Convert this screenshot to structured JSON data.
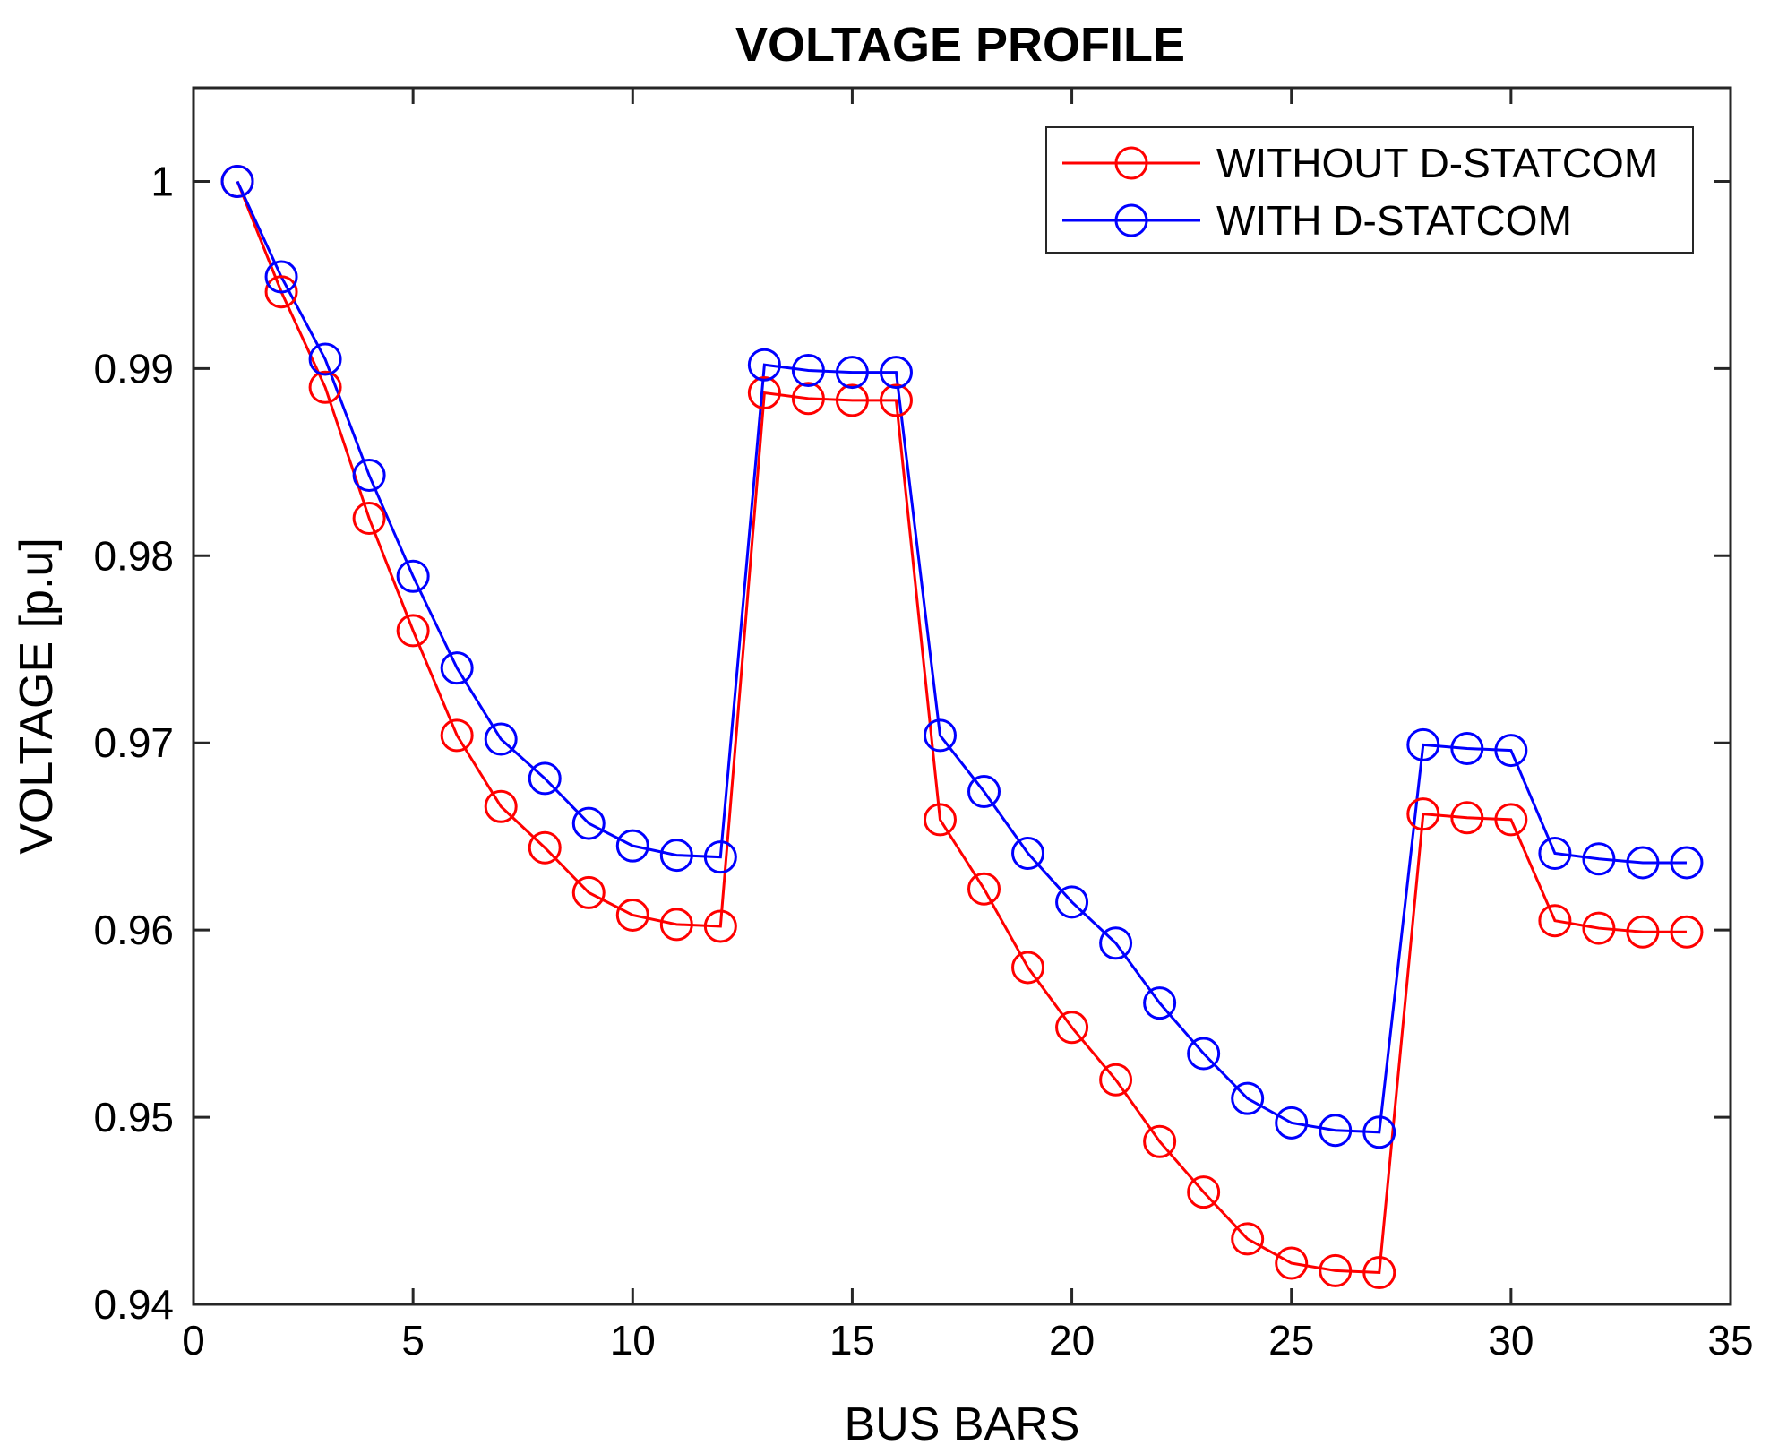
{
  "chart_data": {
    "type": "line",
    "title": "VOLTAGE PROFILE",
    "xlabel": "BUS BARS",
    "ylabel": "VOLTAGE [p.u]",
    "xlim": [
      0,
      35
    ],
    "ylim": [
      0.94,
      1.005
    ],
    "xticks": [
      0,
      5,
      10,
      15,
      20,
      25,
      30,
      35
    ],
    "xtick_labels": [
      "0",
      "5",
      "10",
      "15",
      "20",
      "25",
      "30",
      "35"
    ],
    "yticks": [
      0.94,
      0.95,
      0.96,
      0.97,
      0.98,
      0.99,
      1.0
    ],
    "ytick_labels": [
      "0.94",
      "0.95",
      "0.96",
      "0.97",
      "0.98",
      "0.99",
      "1"
    ],
    "grid": false,
    "legend_position": "top-right",
    "x": [
      1,
      2,
      3,
      4,
      5,
      6,
      7,
      8,
      9,
      10,
      11,
      12,
      13,
      14,
      15,
      16,
      17,
      18,
      19,
      20,
      21,
      22,
      23,
      24,
      25,
      26,
      27,
      28,
      29,
      30,
      31,
      32,
      33,
      34
    ],
    "series": [
      {
        "name": "WITHOUT D-STATCOM",
        "color": "#ff0000",
        "marker": "circle",
        "values": [
          1.0,
          0.9941,
          0.989,
          0.982,
          0.976,
          0.9704,
          0.9666,
          0.9644,
          0.962,
          0.9608,
          0.9603,
          0.9602,
          0.9887,
          0.9884,
          0.9883,
          0.9883,
          0.9659,
          0.9622,
          0.958,
          0.9548,
          0.952,
          0.9487,
          0.946,
          0.9435,
          0.9422,
          0.9418,
          0.9417,
          0.9662,
          0.966,
          0.9659,
          0.9605,
          0.9601,
          0.9599,
          0.9599
        ]
      },
      {
        "name": "WITH D-STATCOM",
        "color": "#0000ff",
        "marker": "circle",
        "values": [
          1.0,
          0.9949,
          0.9905,
          0.9843,
          0.9789,
          0.974,
          0.9702,
          0.9681,
          0.9657,
          0.9645,
          0.964,
          0.9639,
          0.9902,
          0.9899,
          0.9898,
          0.9898,
          0.9704,
          0.9674,
          0.9641,
          0.9615,
          0.9593,
          0.9561,
          0.9534,
          0.951,
          0.9497,
          0.9493,
          0.9492,
          0.9699,
          0.9697,
          0.9696,
          0.9641,
          0.9638,
          0.9636,
          0.9636
        ]
      }
    ]
  }
}
